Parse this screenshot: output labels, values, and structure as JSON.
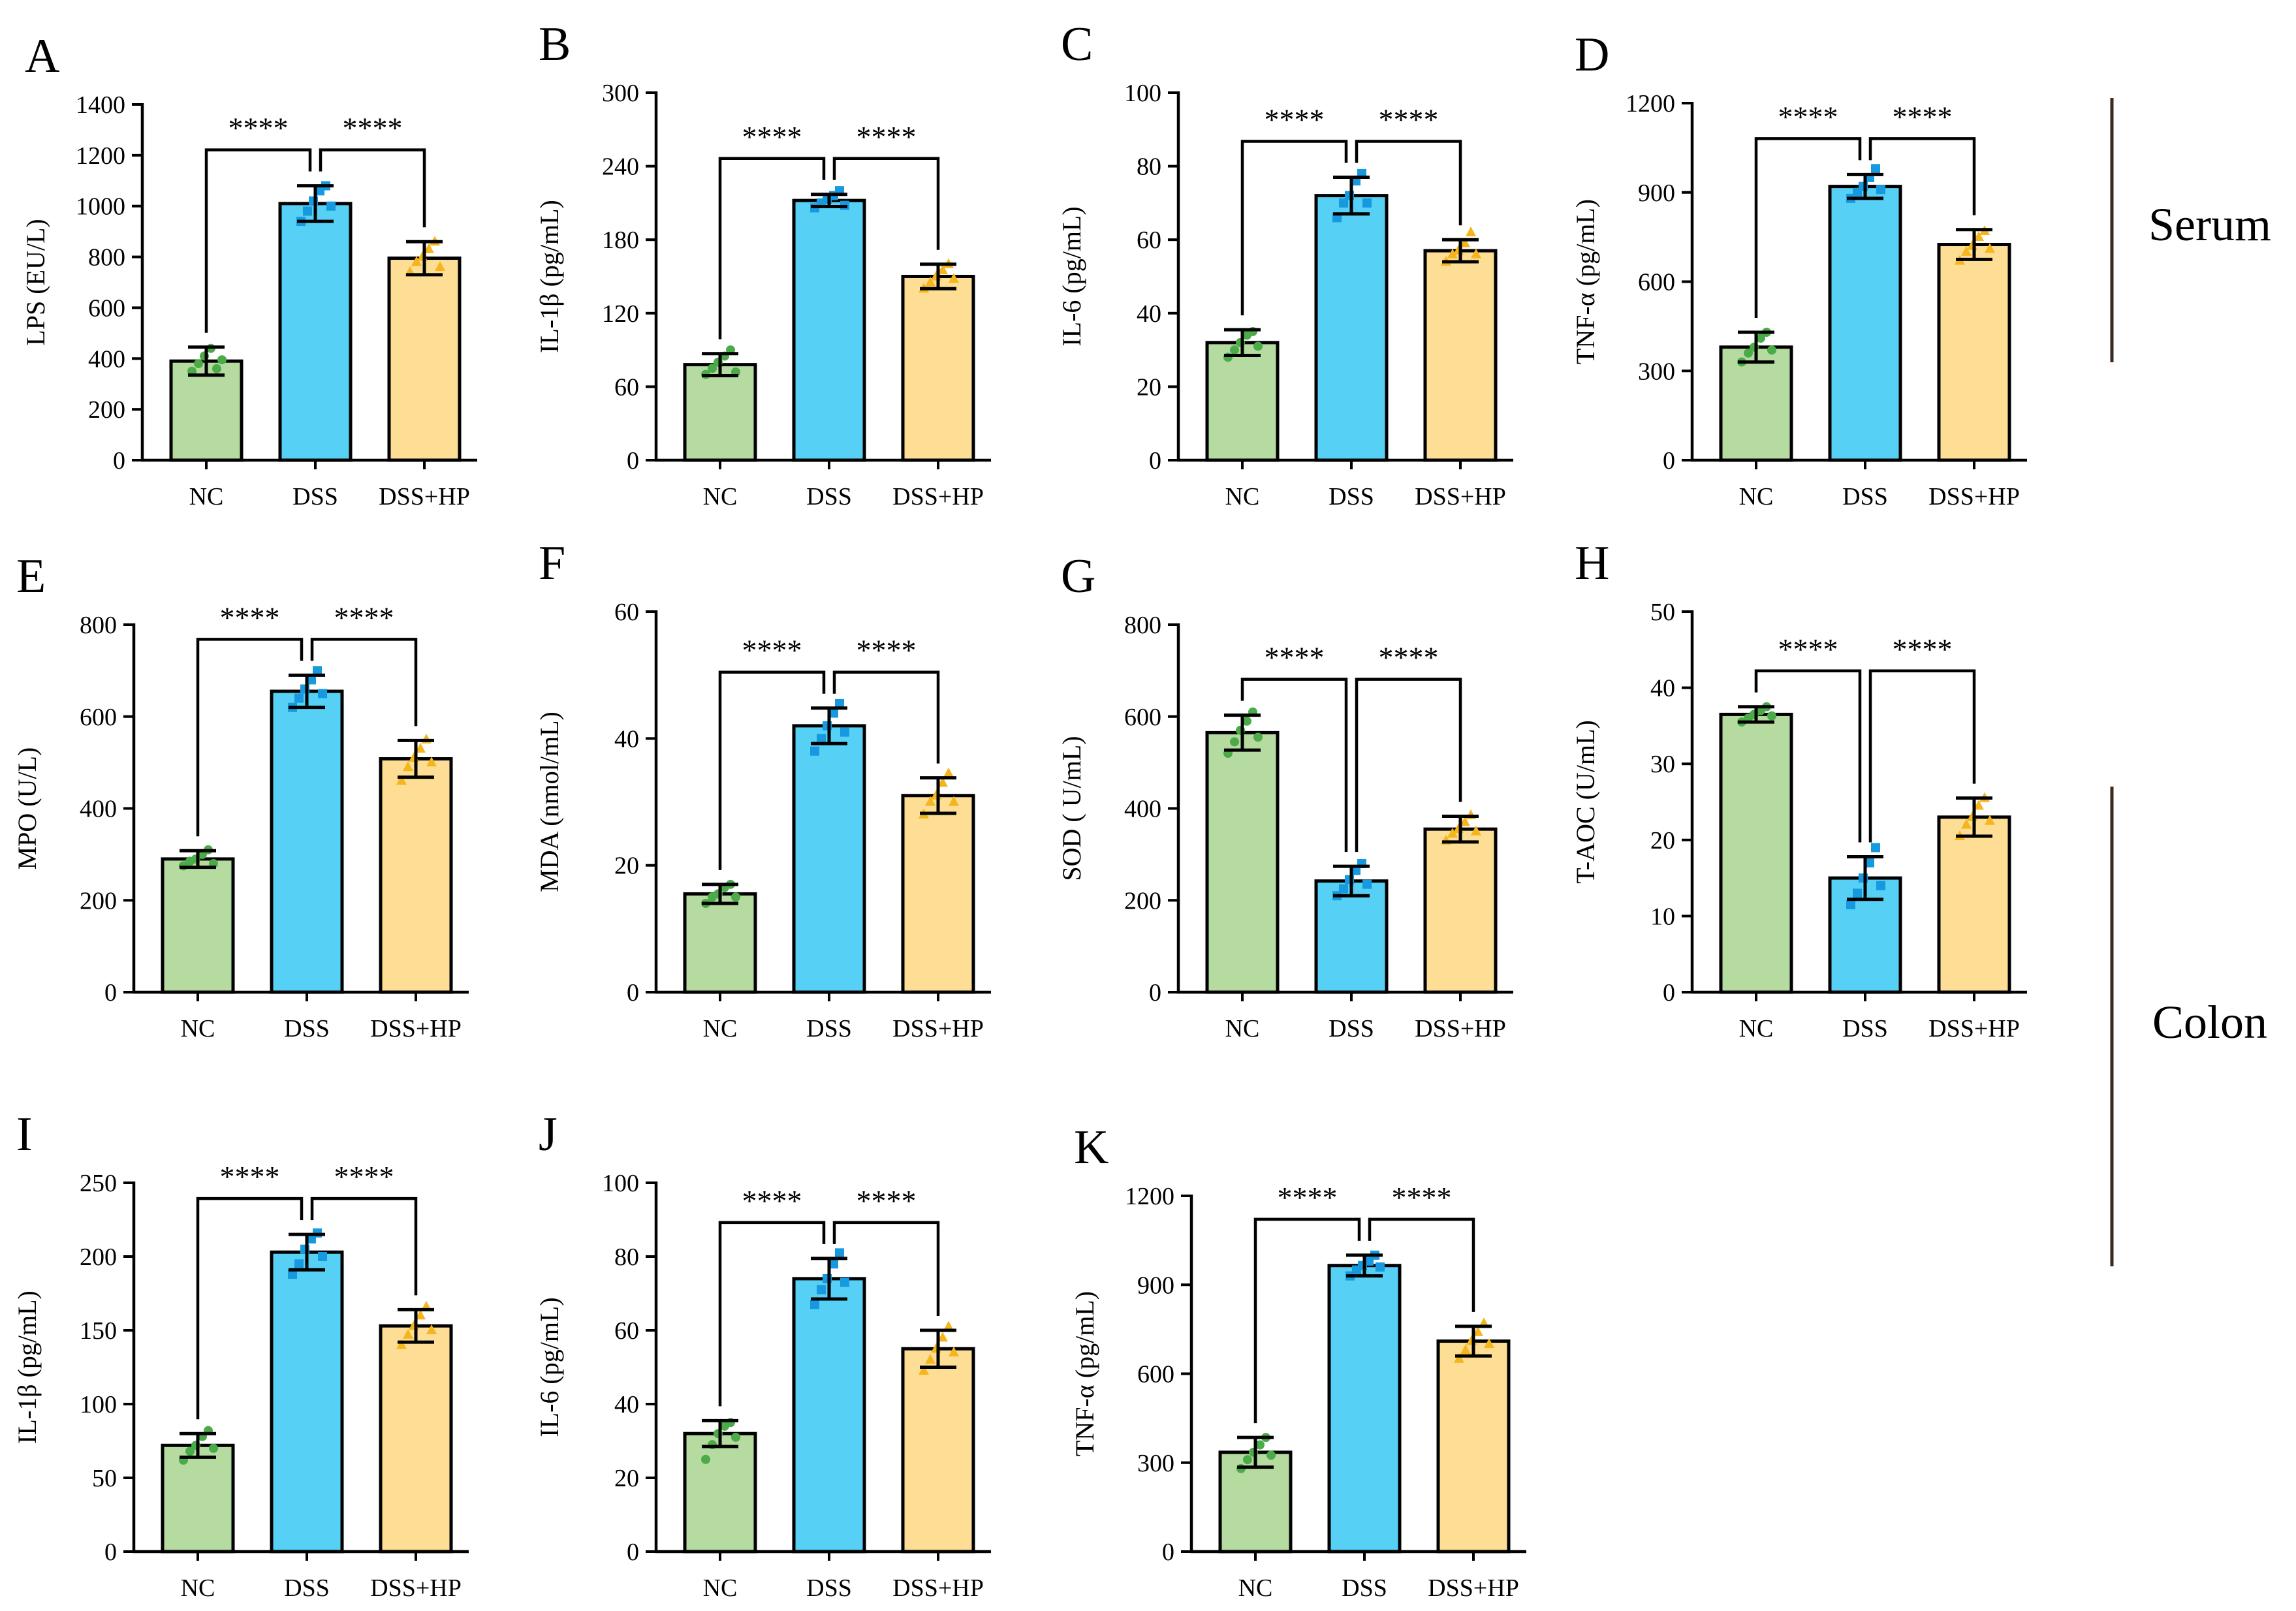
{
  "figure": {
    "group_labels": [
      "Serum",
      "Colon"
    ]
  },
  "colors": {
    "NC": "#b5dba1",
    "DSS": "#56d0f5",
    "DSS+HP": "#fedd94",
    "NC_points": "#4aab48",
    "DSS_points": "#1699df",
    "DSS+HP_points": "#f4b51d"
  },
  "chart_data": [
    {
      "panel": "A",
      "type": "bar",
      "ylabel": "LPS (EU/L)",
      "categories": [
        "NC",
        "DSS",
        "DSS+HP"
      ],
      "values": [
        390,
        1010,
        795
      ],
      "errors": [
        55,
        70,
        65
      ],
      "points": [
        [
          350,
          380,
          410,
          440,
          360,
          395
        ],
        [
          940,
          980,
          1020,
          1060,
          1080,
          1000
        ],
        [
          740,
          780,
          800,
          830,
          860,
          760
        ]
      ],
      "ylim": [
        0,
        1400
      ],
      "yticks": [
        0,
        200,
        400,
        600,
        800,
        1000,
        1200,
        1400
      ],
      "significance": [
        "****",
        "****"
      ]
    },
    {
      "panel": "B",
      "type": "bar",
      "ylabel": "IL-1β (pg/mL)",
      "categories": [
        "NC",
        "DSS",
        "DSS+HP"
      ],
      "values": [
        78,
        212,
        150
      ],
      "errors": [
        9,
        5,
        10
      ],
      "points": [
        [
          70,
          75,
          80,
          85,
          90,
          72
        ],
        [
          206,
          210,
          213,
          216,
          220,
          208
        ],
        [
          140,
          145,
          150,
          155,
          160,
          148
        ]
      ],
      "ylim": [
        0,
        300
      ],
      "yticks": [
        0,
        60,
        120,
        180,
        240,
        300
      ],
      "significance": [
        "****",
        "****"
      ]
    },
    {
      "panel": "C",
      "type": "bar",
      "ylabel": "IL-6 (pg/mL)",
      "categories": [
        "NC",
        "DSS",
        "DSS+HP"
      ],
      "values": [
        32,
        72,
        57
      ],
      "errors": [
        3.5,
        5,
        3
      ],
      "points": [
        [
          28,
          30,
          32,
          34,
          35,
          31
        ],
        [
          66,
          70,
          72,
          76,
          78,
          70
        ],
        [
          54,
          56,
          57,
          59,
          62,
          56
        ]
      ],
      "ylim": [
        0,
        100
      ],
      "yticks": [
        0,
        20,
        40,
        60,
        80,
        100
      ],
      "significance": [
        "****",
        "****"
      ]
    },
    {
      "panel": "D",
      "type": "bar",
      "ylabel": "TNF-α (pg/mL)",
      "categories": [
        "NC",
        "DSS",
        "DSS+HP"
      ],
      "values": [
        380,
        920,
        725
      ],
      "errors": [
        50,
        40,
        50
      ],
      "points": [
        [
          330,
          360,
          380,
          410,
          430,
          370
        ],
        [
          880,
          900,
          920,
          950,
          980,
          910
        ],
        [
          670,
          700,
          720,
          750,
          770,
          710
        ]
      ],
      "ylim": [
        0,
        1200
      ],
      "yticks": [
        0,
        300,
        600,
        900,
        1200
      ],
      "significance": [
        "****",
        "****"
      ]
    },
    {
      "panel": "E",
      "type": "bar",
      "ylabel": "MPO (U/L)",
      "categories": [
        "NC",
        "DSS",
        "DSS+HP"
      ],
      "values": [
        290,
        655,
        508
      ],
      "errors": [
        18,
        35,
        40
      ],
      "points": [
        [
          275,
          285,
          290,
          300,
          310,
          280
        ],
        [
          620,
          640,
          660,
          680,
          700,
          650
        ],
        [
          460,
          490,
          510,
          530,
          550,
          500
        ]
      ],
      "ylim": [
        0,
        800
      ],
      "yticks": [
        0,
        200,
        400,
        600,
        800
      ],
      "significance": [
        "****",
        "****"
      ]
    },
    {
      "panel": "F",
      "type": "bar",
      "ylabel": "MDA (nmol/mL)",
      "categories": [
        "NC",
        "DSS",
        "DSS+HP"
      ],
      "values": [
        15.5,
        42,
        31
      ],
      "errors": [
        1.5,
        2.8,
        2.8
      ],
      "points": [
        [
          14,
          15,
          15.5,
          16.5,
          17,
          15
        ],
        [
          38,
          40,
          42,
          44,
          45.5,
          41
        ],
        [
          28,
          30,
          31,
          33,
          34.5,
          30
        ]
      ],
      "ylim": [
        0,
        60
      ],
      "yticks": [
        0,
        20,
        40,
        60
      ],
      "significance": [
        "****",
        "****"
      ]
    },
    {
      "panel": "G",
      "type": "bar",
      "ylabel": "SOD ( U/mL)",
      "categories": [
        "NC",
        "DSS",
        "DSS+HP"
      ],
      "values": [
        565,
        242,
        355
      ],
      "errors": [
        38,
        32,
        28
      ],
      "points": [
        [
          520,
          545,
          570,
          590,
          610,
          555
        ],
        [
          210,
          225,
          245,
          265,
          280,
          235
        ],
        [
          330,
          345,
          355,
          370,
          385,
          350
        ]
      ],
      "ylim": [
        0,
        800
      ],
      "yticks": [
        0,
        200,
        400,
        600,
        800
      ],
      "significance": [
        "****",
        "****"
      ]
    },
    {
      "panel": "H",
      "type": "bar",
      "ylabel": "T-AOC (U/mL)",
      "categories": [
        "NC",
        "DSS",
        "DSS+HP"
      ],
      "values": [
        36.5,
        15,
        23
      ],
      "errors": [
        1,
        2.8,
        2.5
      ],
      "points": [
        [
          35.5,
          36,
          36.5,
          37,
          37.5,
          36.3
        ],
        [
          11.5,
          13,
          15,
          17,
          19,
          14
        ],
        [
          20.5,
          22,
          23,
          24.5,
          25.5,
          22.5
        ]
      ],
      "ylim": [
        0,
        50
      ],
      "yticks": [
        0,
        10,
        20,
        30,
        40,
        50
      ],
      "significance": [
        "****",
        "****"
      ]
    },
    {
      "panel": "I",
      "type": "bar",
      "ylabel": "IL-1β (pg/mL)",
      "categories": [
        "NC",
        "DSS",
        "DSS+HP"
      ],
      "values": [
        72,
        203,
        153
      ],
      "errors": [
        8,
        12,
        11
      ],
      "points": [
        [
          62,
          68,
          72,
          78,
          82,
          70
        ],
        [
          188,
          195,
          205,
          212,
          216,
          200
        ],
        [
          140,
          147,
          153,
          160,
          166,
          150
        ]
      ],
      "ylim": [
        0,
        250
      ],
      "yticks": [
        0,
        50,
        100,
        150,
        200,
        250
      ],
      "significance": [
        "****",
        "****"
      ]
    },
    {
      "panel": "J",
      "type": "bar",
      "ylabel": "IL-6 (pg/mL)",
      "categories": [
        "NC",
        "DSS",
        "DSS+HP"
      ],
      "values": [
        32,
        74,
        55
      ],
      "errors": [
        3.5,
        5.5,
        5
      ],
      "points": [
        [
          25,
          29,
          32,
          34,
          35,
          31
        ],
        [
          67,
          71,
          74,
          78,
          81,
          73
        ],
        [
          49,
          52,
          55,
          58,
          61,
          54
        ]
      ],
      "ylim": [
        0,
        100
      ],
      "yticks": [
        0,
        20,
        40,
        60,
        80,
        100
      ],
      "significance": [
        "****",
        "****"
      ]
    },
    {
      "panel": "K",
      "type": "bar",
      "ylabel": "TNF-α (pg/mL)",
      "categories": [
        "NC",
        "DSS",
        "DSS+HP"
      ],
      "values": [
        335,
        965,
        710
      ],
      "errors": [
        50,
        35,
        50
      ],
      "points": [
        [
          280,
          310,
          335,
          360,
          385,
          325
        ],
        [
          930,
          950,
          965,
          980,
          1000,
          960
        ],
        [
          650,
          680,
          710,
          740,
          770,
          700
        ]
      ],
      "ylim": [
        0,
        1200
      ],
      "yticks": [
        0,
        300,
        600,
        900,
        1200
      ],
      "significance": [
        "****",
        "****"
      ]
    }
  ]
}
